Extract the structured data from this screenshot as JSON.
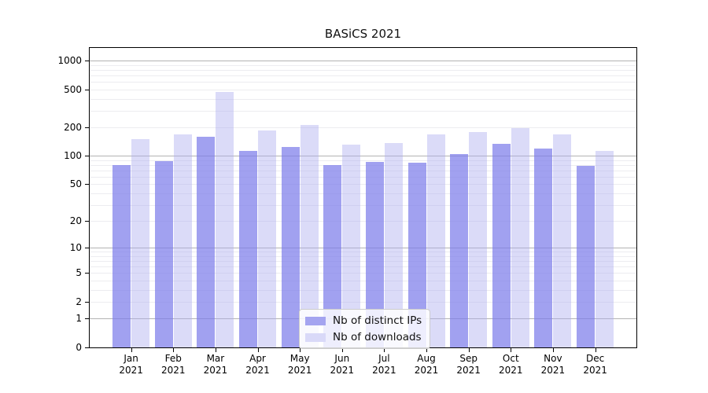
{
  "title": "BASiCS 2021",
  "colors": {
    "ips": "#a4a4f0",
    "downloads": "#d9d9f8",
    "grid_major": "#b3b3b3",
    "grid_minor": "#ececf0",
    "axis": "#000000"
  },
  "legend": {
    "items": [
      {
        "label": "Nb of distinct IPs",
        "color_key": "ips"
      },
      {
        "label": "Nb of downloads",
        "color_key": "downloads"
      }
    ]
  },
  "chart_data": {
    "type": "bar",
    "title": "BASiCS 2021",
    "categories": [
      "Jan 2021",
      "Feb 2021",
      "Mar 2021",
      "Apr 2021",
      "May 2021",
      "Jun 2021",
      "Jul 2021",
      "Aug 2021",
      "Sep 2021",
      "Oct 2021",
      "Nov 2021",
      "Dec 2021"
    ],
    "series": [
      {
        "name": "Nb of distinct IPs",
        "color": "#a4a4f0",
        "values": [
          80,
          88,
          158,
          113,
          124,
          80,
          87,
          85,
          104,
          133,
          120,
          78
        ]
      },
      {
        "name": "Nb of downloads",
        "color": "#d9d9f8",
        "values": [
          150,
          170,
          470,
          185,
          210,
          131,
          137,
          168,
          178,
          198,
          170,
          112
        ]
      }
    ],
    "xlabel": "",
    "ylabel": "",
    "yscale": "log1p",
    "ytick_values": [
      0,
      1,
      2,
      5,
      10,
      20,
      50,
      100,
      200,
      500,
      1000
    ],
    "ytick_labels": [
      "0",
      "1",
      "2",
      "5",
      "10",
      "20",
      "50",
      "100",
      "200",
      "500",
      "1000"
    ],
    "ylim": [
      0,
      1400
    ],
    "grid": true,
    "legend_position": "lower center"
  }
}
